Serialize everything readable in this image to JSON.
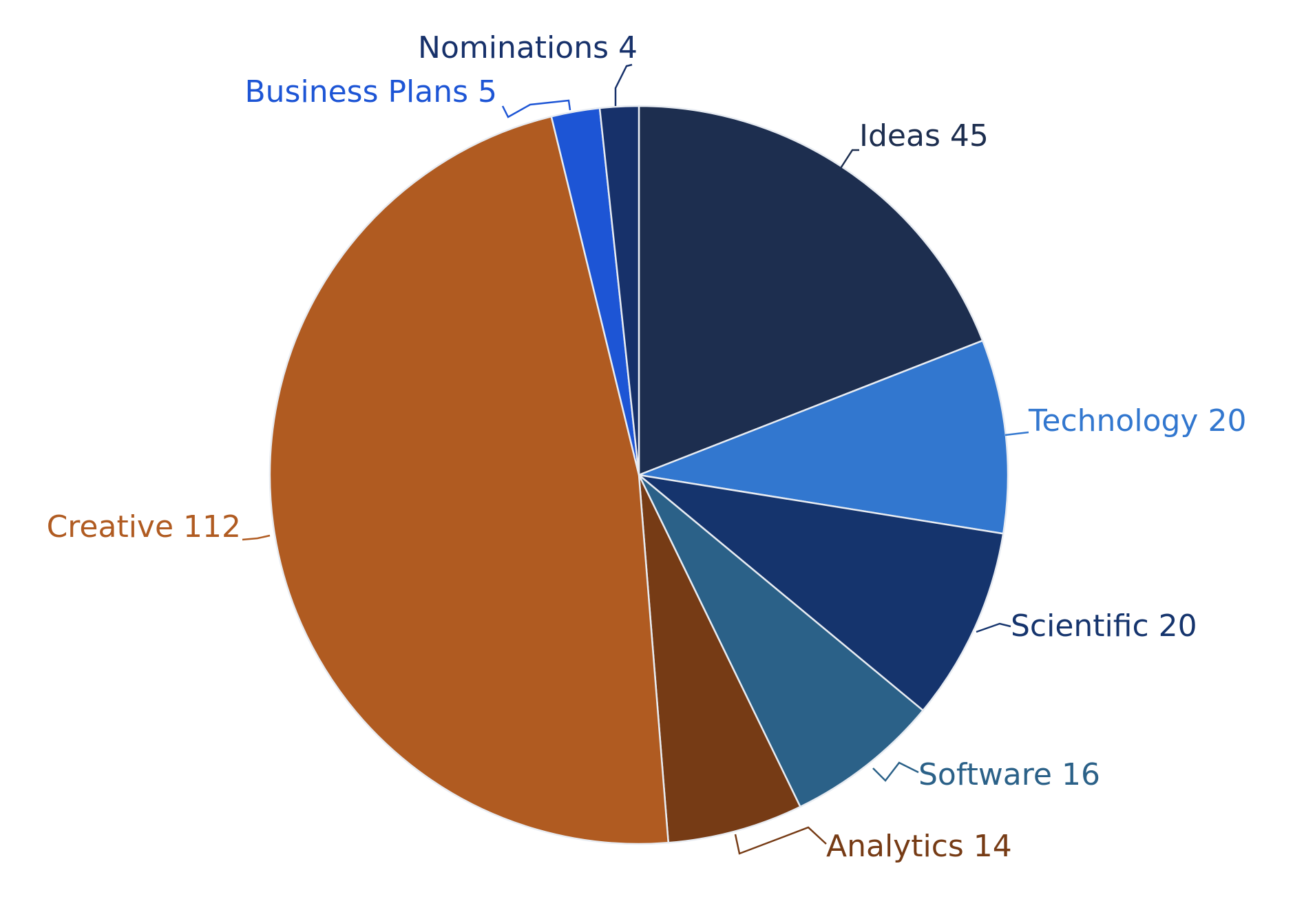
{
  "chart_data": {
    "type": "pie",
    "title": "",
    "start_angle_deg": 0,
    "direction": "clockwise",
    "slices": [
      {
        "label": "Ideas",
        "value": 45,
        "display": "Ideas 45",
        "color": "#1d2e4f",
        "label_color": "#1d2e4f"
      },
      {
        "label": "Technology",
        "value": 20,
        "display": "Technology 20",
        "color": "#3277cf",
        "label_color": "#3277cf"
      },
      {
        "label": "Scientific",
        "value": 20,
        "display": "Scientific 20",
        "color": "#15346d",
        "label_color": "#15346d"
      },
      {
        "label": "Software",
        "value": 16,
        "display": "Software 16",
        "color": "#2b6188",
        "label_color": "#2b6188"
      },
      {
        "label": "Analytics",
        "value": 14,
        "display": "Analytics 14",
        "color": "#763b15",
        "label_color": "#763b15"
      },
      {
        "label": "Creative",
        "value": 112,
        "display": "Creative 112",
        "color": "#b05b21",
        "label_color": "#b05b21"
      },
      {
        "label": "Business Plans",
        "value": 5,
        "display": "Business Plans 5",
        "color": "#1d55d5",
        "label_color": "#1d55d5"
      },
      {
        "label": "Nominations",
        "value": 4,
        "display": "Nominations 4",
        "color": "#17316a",
        "label_color": "#17316a"
      }
    ]
  }
}
